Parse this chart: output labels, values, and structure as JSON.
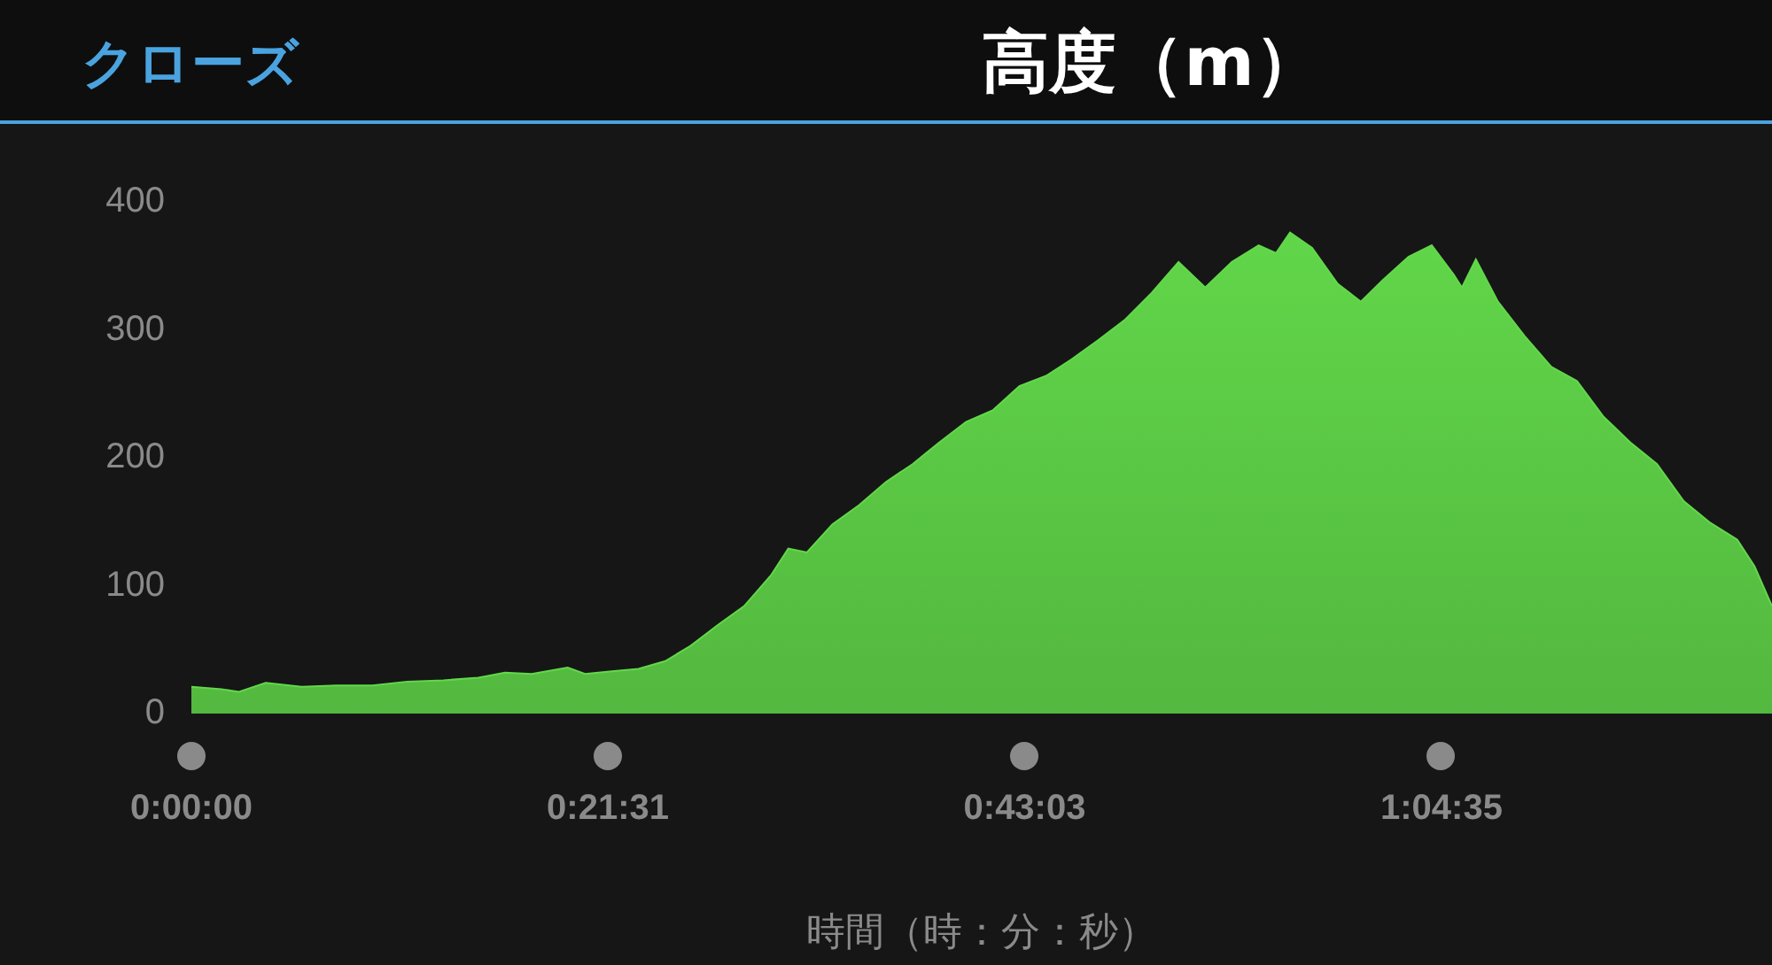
{
  "chart_data": {
    "type": "area",
    "title": "高度（m）",
    "xlabel": "時間（時：分：秒）",
    "annotations": [
      "クローズ"
    ],
    "xlim": [
      0,
      1.361
    ],
    "xticks": [
      {
        "value": 0,
        "label": "0:00:00"
      },
      {
        "value": 0.3586,
        "label": "0:21:31"
      },
      {
        "value": 0.7175,
        "label": "0:43:03"
      },
      {
        "value": 1.0764,
        "label": "1:04:35"
      }
    ],
    "ylim": [
      0,
      400
    ],
    "yticks": [
      0,
      100,
      200,
      300,
      400
    ],
    "grid": false,
    "legend": false,
    "series": [
      {
        "color": "#62d84a",
        "x": [
          0,
          0.026,
          0.041,
          0.064,
          0.095,
          0.125,
          0.156,
          0.186,
          0.217,
          0.247,
          0.27,
          0.293,
          0.324,
          0.339,
          0.362,
          0.385,
          0.408,
          0.43,
          0.453,
          0.476,
          0.499,
          0.514,
          0.53,
          0.552,
          0.575,
          0.598,
          0.621,
          0.644,
          0.667,
          0.69,
          0.713,
          0.736,
          0.758,
          0.781,
          0.804,
          0.827,
          0.85,
          0.873,
          0.896,
          0.919,
          0.934,
          0.946,
          0.965,
          0.987,
          1.007,
          1.026,
          1.048,
          1.068,
          1.087,
          1.094,
          1.106,
          1.125,
          1.148,
          1.171,
          1.193,
          1.216,
          1.239,
          1.262,
          1.285,
          1.308,
          1.331,
          1.346,
          1.361
        ],
        "values": [
          21,
          19,
          17,
          24,
          21,
          22,
          22,
          25,
          26,
          28,
          32,
          31,
          36,
          31,
          33,
          35,
          41,
          53,
          69,
          84,
          108,
          129,
          126,
          148,
          163,
          181,
          195,
          212,
          228,
          237,
          256,
          264,
          277,
          292,
          308,
          329,
          353,
          333,
          353,
          366,
          360,
          376,
          364,
          336,
          322,
          339,
          357,
          366,
          343,
          333,
          355,
          322,
          295,
          271,
          260,
          232,
          212,
          195,
          166,
          149,
          136,
          115,
          84
        ]
      }
    ]
  }
}
